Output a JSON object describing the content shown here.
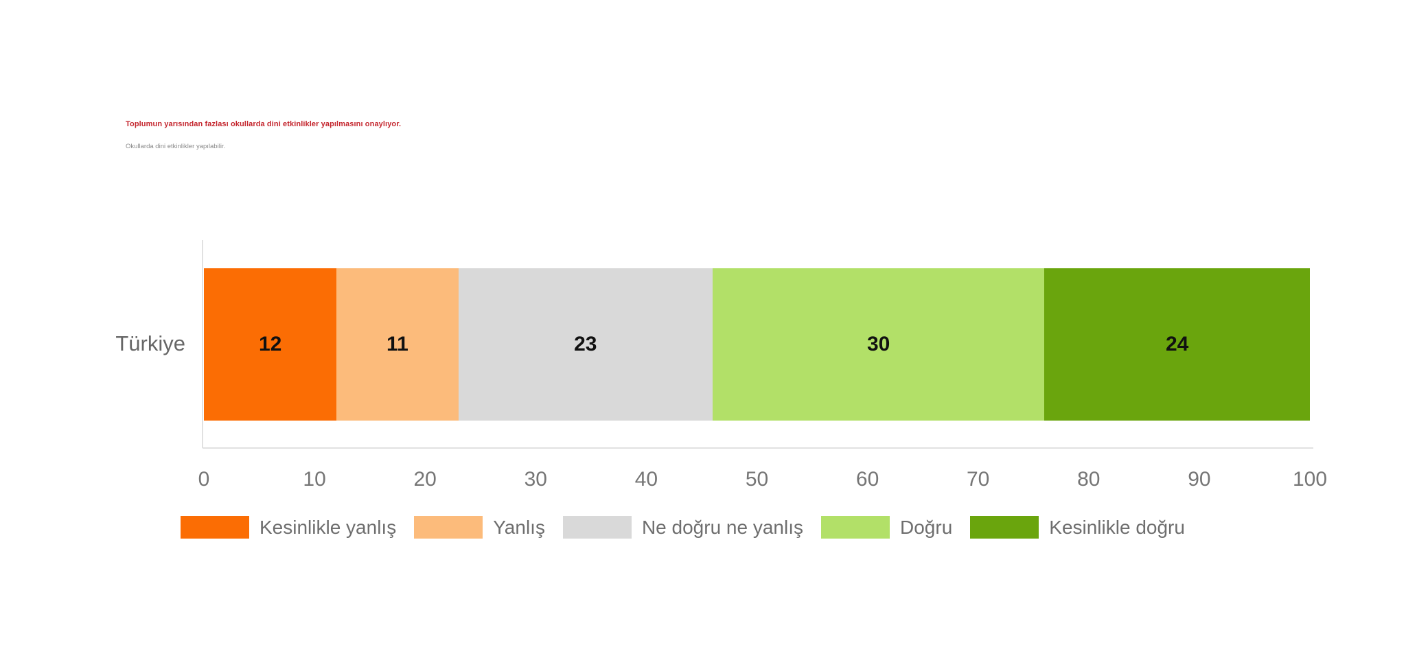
{
  "chart_data": {
    "type": "bar",
    "stacked": true,
    "orientation": "horizontal",
    "title": "Toplumun yarısından fazlası okullarda dini etkinlikler yapılmasını onaylıyor.",
    "title_color": "#C4262E",
    "subtitle": "Okullarda dini etkinlikler yapılabilir.",
    "subtitle_color": "#8A8A8A",
    "categories": [
      "Türkiye"
    ],
    "series": [
      {
        "name": "Kesinlikle yanlış",
        "color": "#FB6D04",
        "values": [
          12
        ]
      },
      {
        "name": "Yanlış",
        "color": "#FCBB7B",
        "values": [
          11
        ]
      },
      {
        "name": "Ne doğru ne yanlış",
        "color": "#D9D9D9",
        "values": [
          23
        ]
      },
      {
        "name": "Doğru",
        "color": "#B2E068",
        "values": [
          30
        ]
      },
      {
        "name": "Kesinlikle doğru",
        "color": "#6AA50D",
        "values": [
          24
        ]
      }
    ],
    "xlim": [
      0,
      100
    ],
    "x_ticks": [
      0,
      10,
      20,
      30,
      40,
      50,
      60,
      70,
      80,
      90,
      100
    ],
    "grid": false,
    "value_labels": true,
    "legend_position": "bottom",
    "axis_tick_color": "#757575",
    "category_label_color": "#666666",
    "legend_text_color": "#6E6E6E",
    "value_label_color": "#111111",
    "axis_line_color": "#E1E1E1"
  }
}
